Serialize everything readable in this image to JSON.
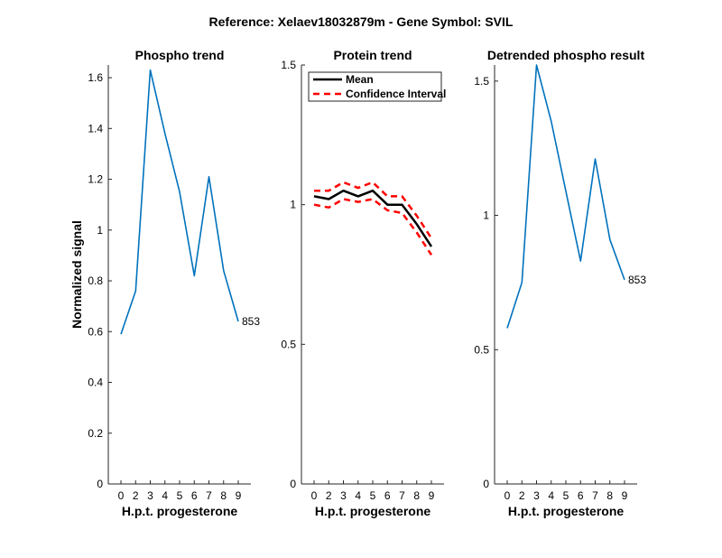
{
  "figure_title": "Reference:  Xelaev18032879m - Gene Symbol:  SVIL",
  "colors": {
    "phospho": "#0072BD",
    "mean": "#000000",
    "ci": "#FF0000",
    "axis": "#262626"
  },
  "chart_data": [
    {
      "type": "line",
      "title": "Phospho trend",
      "xlabel": "H.p.t. progesterone",
      "ylabel": "Normalized signal",
      "categories": [
        "0",
        "2",
        "3",
        "4",
        "5",
        "6",
        "7",
        "8",
        "9"
      ],
      "ylim": [
        0,
        1.65
      ],
      "yticks": [
        0,
        0.2,
        0.4,
        0.6,
        0.8,
        1,
        1.2,
        1.4,
        1.6
      ],
      "series": [
        {
          "values": [
            0.59,
            0.76,
            1.63,
            1.38,
            1.15,
            0.82,
            1.21,
            0.84,
            0.64
          ],
          "color": "#0072BD"
        }
      ],
      "annotation": "853"
    },
    {
      "type": "line",
      "title": "Protein trend",
      "xlabel": "H.p.t. progesterone",
      "ylabel": "",
      "categories": [
        "0",
        "2",
        "3",
        "4",
        "5",
        "6",
        "7",
        "8",
        "9"
      ],
      "ylim": [
        0,
        1.5
      ],
      "yticks": [
        0,
        0.5,
        1,
        1.5
      ],
      "legend_position": "top-left",
      "series": [
        {
          "name": "Mean",
          "values": [
            1.03,
            1.02,
            1.05,
            1.03,
            1.05,
            1.0,
            1.0,
            0.93,
            0.85
          ],
          "color": "#000000",
          "style": "solid"
        },
        {
          "name": "Confidence Interval",
          "values": [
            1.05,
            1.05,
            1.08,
            1.06,
            1.08,
            1.03,
            1.03,
            0.96,
            0.88
          ],
          "color": "#FF0000",
          "style": "dashed"
        },
        {
          "values": [
            1.0,
            0.99,
            1.02,
            1.01,
            1.02,
            0.98,
            0.97,
            0.9,
            0.82
          ],
          "color": "#FF0000",
          "style": "dashed"
        }
      ]
    },
    {
      "type": "line",
      "title": "Detrended phospho result",
      "xlabel": "H.p.t. progesterone",
      "ylabel": "",
      "categories": [
        "0",
        "2",
        "3",
        "4",
        "5",
        "6",
        "7",
        "8",
        "9"
      ],
      "ylim": [
        0,
        1.56
      ],
      "yticks": [
        0,
        0.5,
        1,
        1.5
      ],
      "series": [
        {
          "values": [
            0.58,
            0.75,
            1.56,
            1.35,
            1.09,
            0.83,
            1.21,
            0.91,
            0.76
          ],
          "color": "#0072BD"
        }
      ],
      "annotation": "853"
    }
  ]
}
